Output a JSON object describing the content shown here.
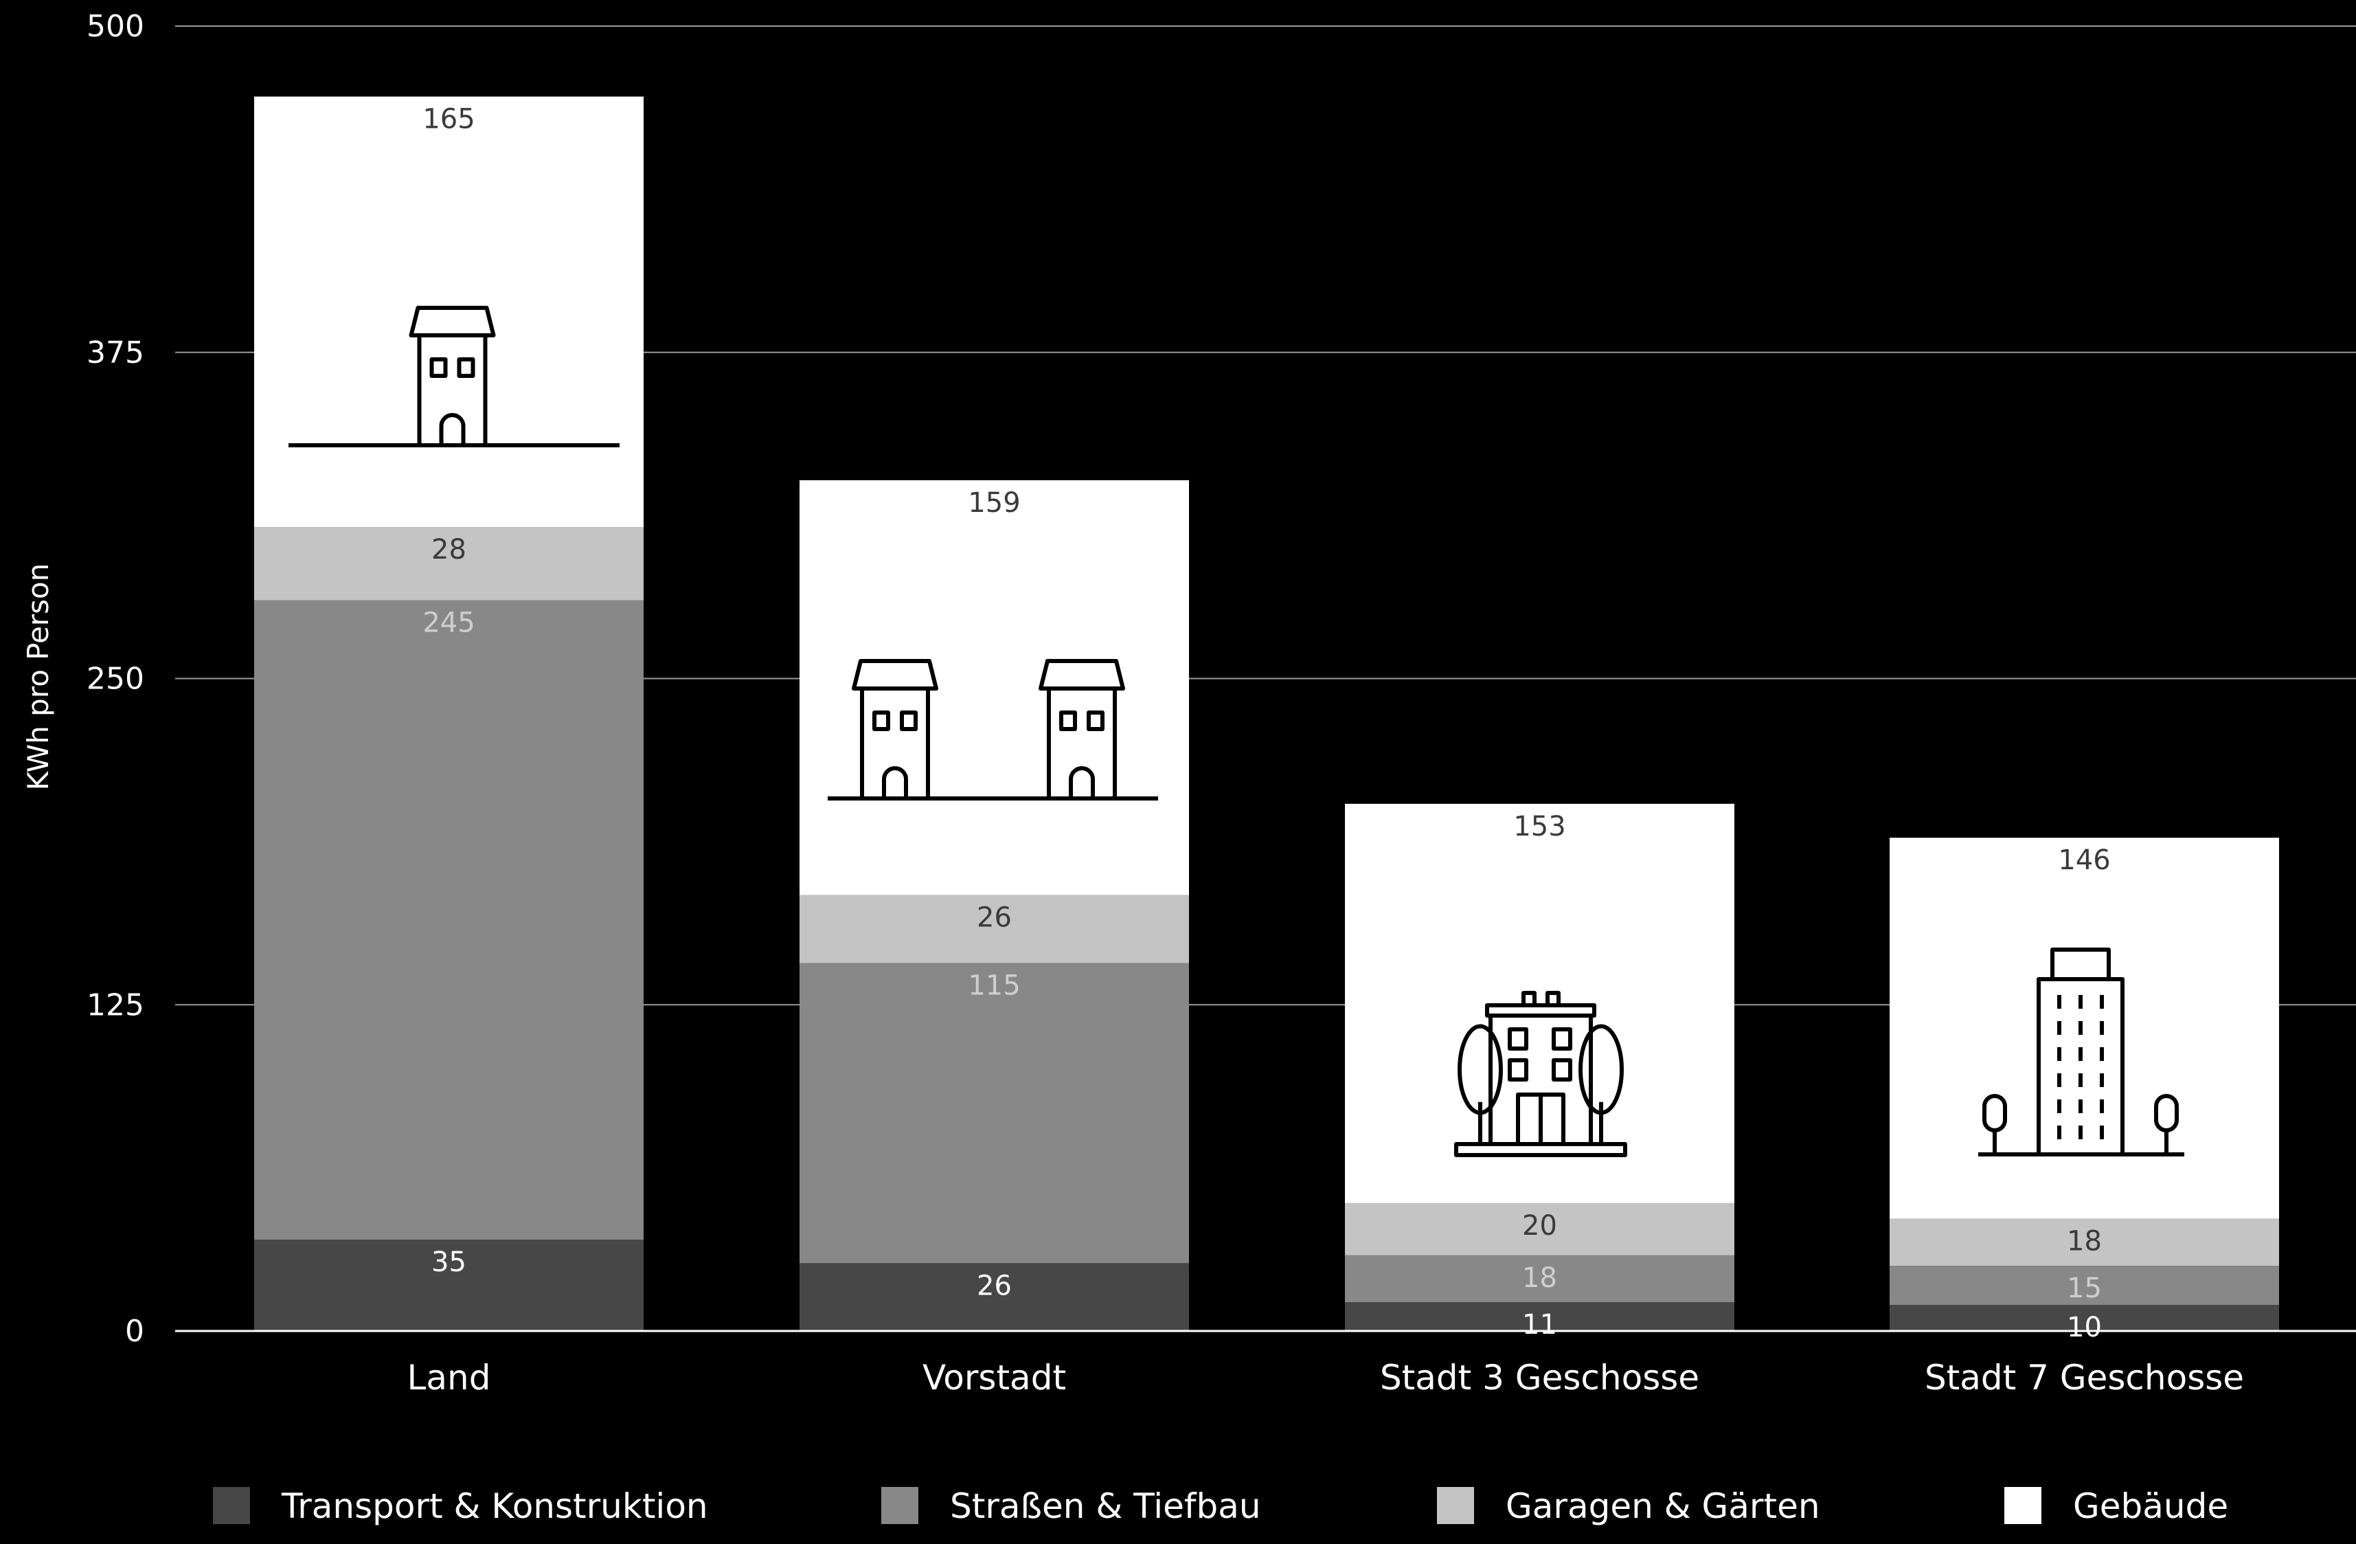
{
  "chart_data": {
    "type": "bar",
    "stacked": true,
    "ylabel": "KWh pro Person",
    "xlabel": "",
    "ylim": [
      0,
      500
    ],
    "yticks": [
      0,
      125,
      250,
      375,
      500
    ],
    "grid": true,
    "legend_position": "bottom",
    "categories": [
      "Land",
      "Vorstadt",
      "Stadt 3 Geschosse",
      "Stadt 7 Geschosse"
    ],
    "category_icons": [
      "single-house-icon",
      "two-houses-icon",
      "apartment-building-with-trees-icon",
      "tower-with-trees-icon"
    ],
    "series": [
      {
        "name": "Transport & Konstruktion",
        "color": "#474747",
        "label_color": "#ffffff",
        "values": [
          35,
          26,
          11,
          10
        ]
      },
      {
        "name": "Straßen & Tiefbau",
        "color": "#888888",
        "label_color": "#cfcfcf",
        "values": [
          245,
          115,
          18,
          15
        ]
      },
      {
        "name": "Garagen & Gärten",
        "color": "#c4c4c4",
        "label_color": "#3a3a3a",
        "values": [
          28,
          26,
          20,
          18
        ]
      },
      {
        "name": "Gebäude",
        "color": "#ffffff",
        "label_color": "#3a3a3a",
        "values": [
          165,
          159,
          153,
          146
        ]
      }
    ]
  }
}
